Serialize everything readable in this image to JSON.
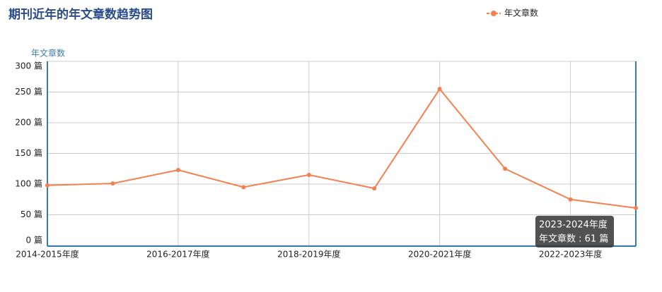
{
  "chart_data": {
    "type": "line",
    "title": "期刊近年的年文章数趋势图",
    "y_axis_label": "年文章数",
    "categories": [
      "2014-2015年度",
      null,
      "2016-2017年度",
      null,
      "2018-2019年度",
      null,
      "2020-2021年度",
      null,
      "2022-2023年度",
      null
    ],
    "series": [
      {
        "name": "年文章数",
        "color": "#f5804f",
        "values": [
          98,
          101,
          123,
          95,
          115,
          93,
          255,
          125,
          75,
          61
        ]
      }
    ],
    "ylim": [
      0,
      300
    ],
    "yticks": [
      {
        "value": 0,
        "label": "0 篇"
      },
      {
        "value": 50,
        "label": "50 篇"
      },
      {
        "value": 100,
        "label": "100 篇"
      },
      {
        "value": 150,
        "label": "150 篇"
      },
      {
        "value": 200,
        "label": "200 篇"
      },
      {
        "value": 250,
        "label": "250 篇"
      },
      {
        "value": 300,
        "label": "300 篇"
      }
    ],
    "grid": true,
    "legend": "top-right",
    "tooltip": {
      "index": 9,
      "lines": [
        "2023-2024年度",
        "年文章数 : 61 篇"
      ]
    }
  }
}
